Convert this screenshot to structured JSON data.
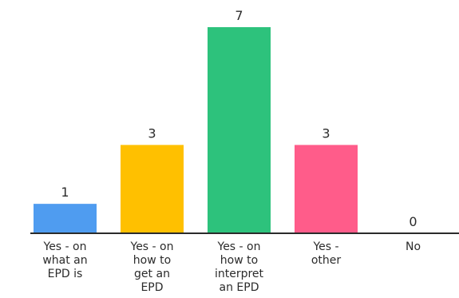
{
  "chart_data": {
    "type": "bar",
    "title": "",
    "xlabel": "",
    "ylabel": "",
    "ylim": [
      0,
      7
    ],
    "grid": false,
    "legend": "none",
    "categories": [
      "Yes - on what an EPD is",
      "Yes - on how to get an EPD",
      "Yes - on how to interpret an EPD",
      "Yes - other",
      "No"
    ],
    "category_lines": [
      [
        "Yes - on",
        "what an",
        "EPD is"
      ],
      [
        "Yes - on",
        "how to",
        "get an",
        "EPD"
      ],
      [
        "Yes - on",
        "how to",
        "interpret",
        "an EPD"
      ],
      [
        "Yes -",
        "other"
      ],
      [
        "No"
      ]
    ],
    "values": [
      1,
      3,
      7,
      3,
      0
    ],
    "colors": [
      "#4f9cf0",
      "#ffc000",
      "#2dc27c",
      "#ff5c8a",
      "#9e9e9e"
    ],
    "axis_color": "#2b2b2b"
  }
}
